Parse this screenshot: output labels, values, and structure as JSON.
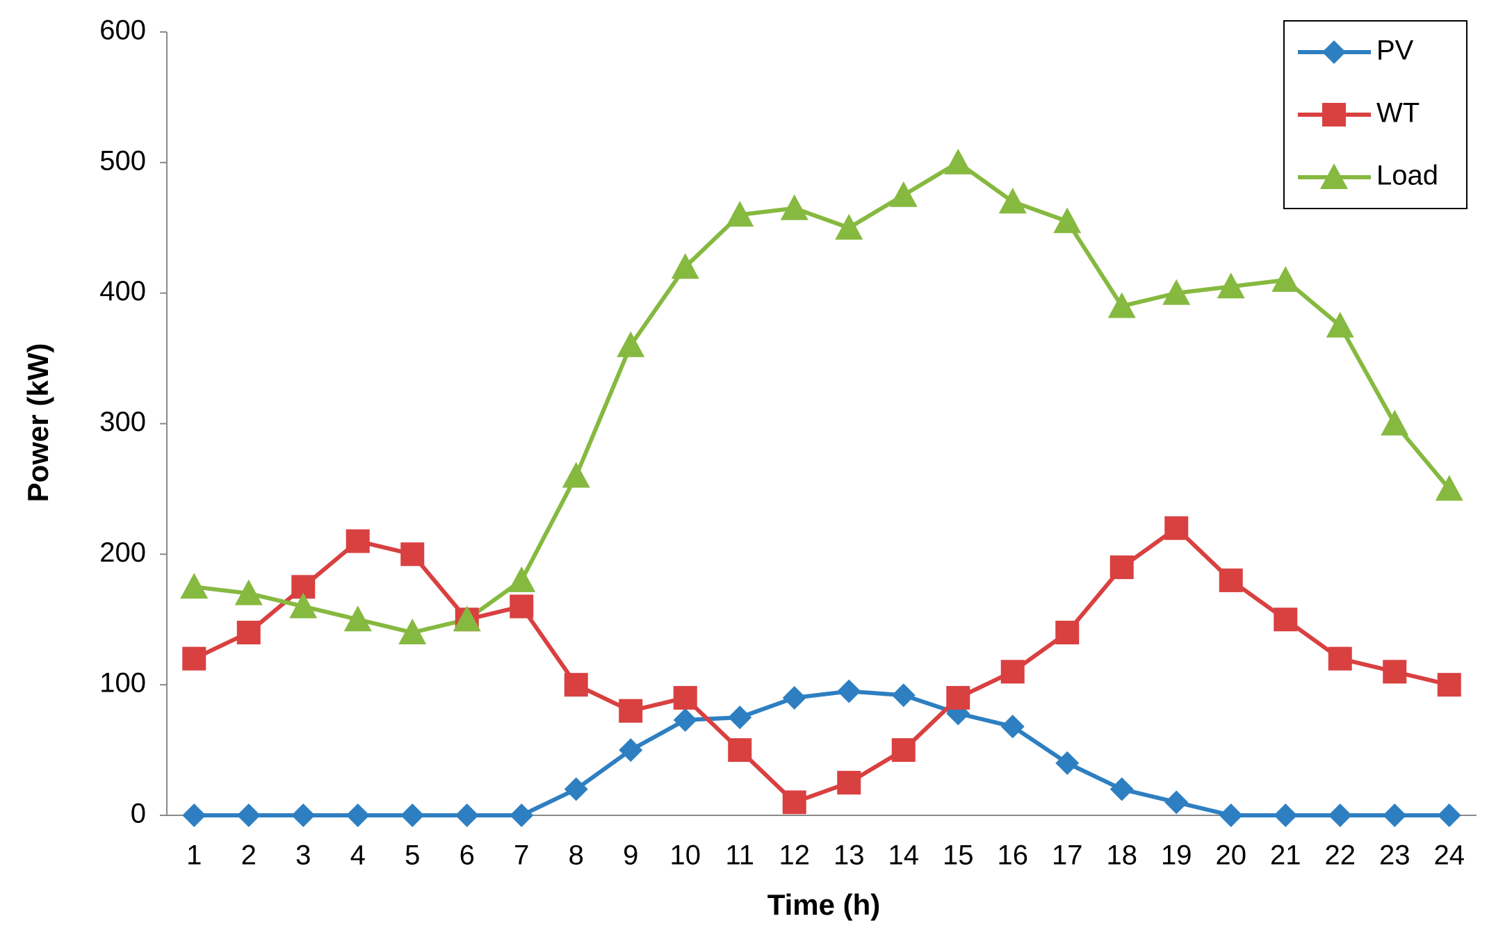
{
  "chart_data": {
    "type": "line",
    "x_label": "Time (h)",
    "y_label": "Power (kW)",
    "categories": [
      1,
      2,
      3,
      4,
      5,
      6,
      7,
      8,
      9,
      10,
      11,
      12,
      13,
      14,
      15,
      16,
      17,
      18,
      19,
      20,
      21,
      22,
      23,
      24
    ],
    "series": [
      {
        "name": "PV",
        "color": "#2e7fc1",
        "marker": "diamond",
        "values": [
          0,
          0,
          0,
          0,
          0,
          0,
          0,
          20,
          50,
          73,
          75,
          90,
          95,
          92,
          78,
          68,
          40,
          20,
          10,
          0,
          0,
          0,
          0,
          0
        ]
      },
      {
        "name": "WT",
        "color": "#d94040",
        "marker": "square",
        "values": [
          120,
          140,
          175,
          210,
          200,
          150,
          160,
          100,
          80,
          90,
          50,
          10,
          25,
          50,
          90,
          110,
          140,
          190,
          220,
          180,
          150,
          120,
          110,
          100
        ]
      },
      {
        "name": "Load",
        "color": "#86b940",
        "marker": "triangle",
        "values": [
          175,
          170,
          160,
          150,
          140,
          150,
          180,
          260,
          360,
          420,
          460,
          465,
          450,
          475,
          500,
          470,
          455,
          390,
          400,
          405,
          410,
          375,
          300,
          250
        ]
      }
    ],
    "ylim": [
      0,
      600
    ],
    "yticks": [
      0,
      100,
      200,
      300,
      400,
      500,
      600
    ],
    "grid": false,
    "legend": "top-right"
  }
}
